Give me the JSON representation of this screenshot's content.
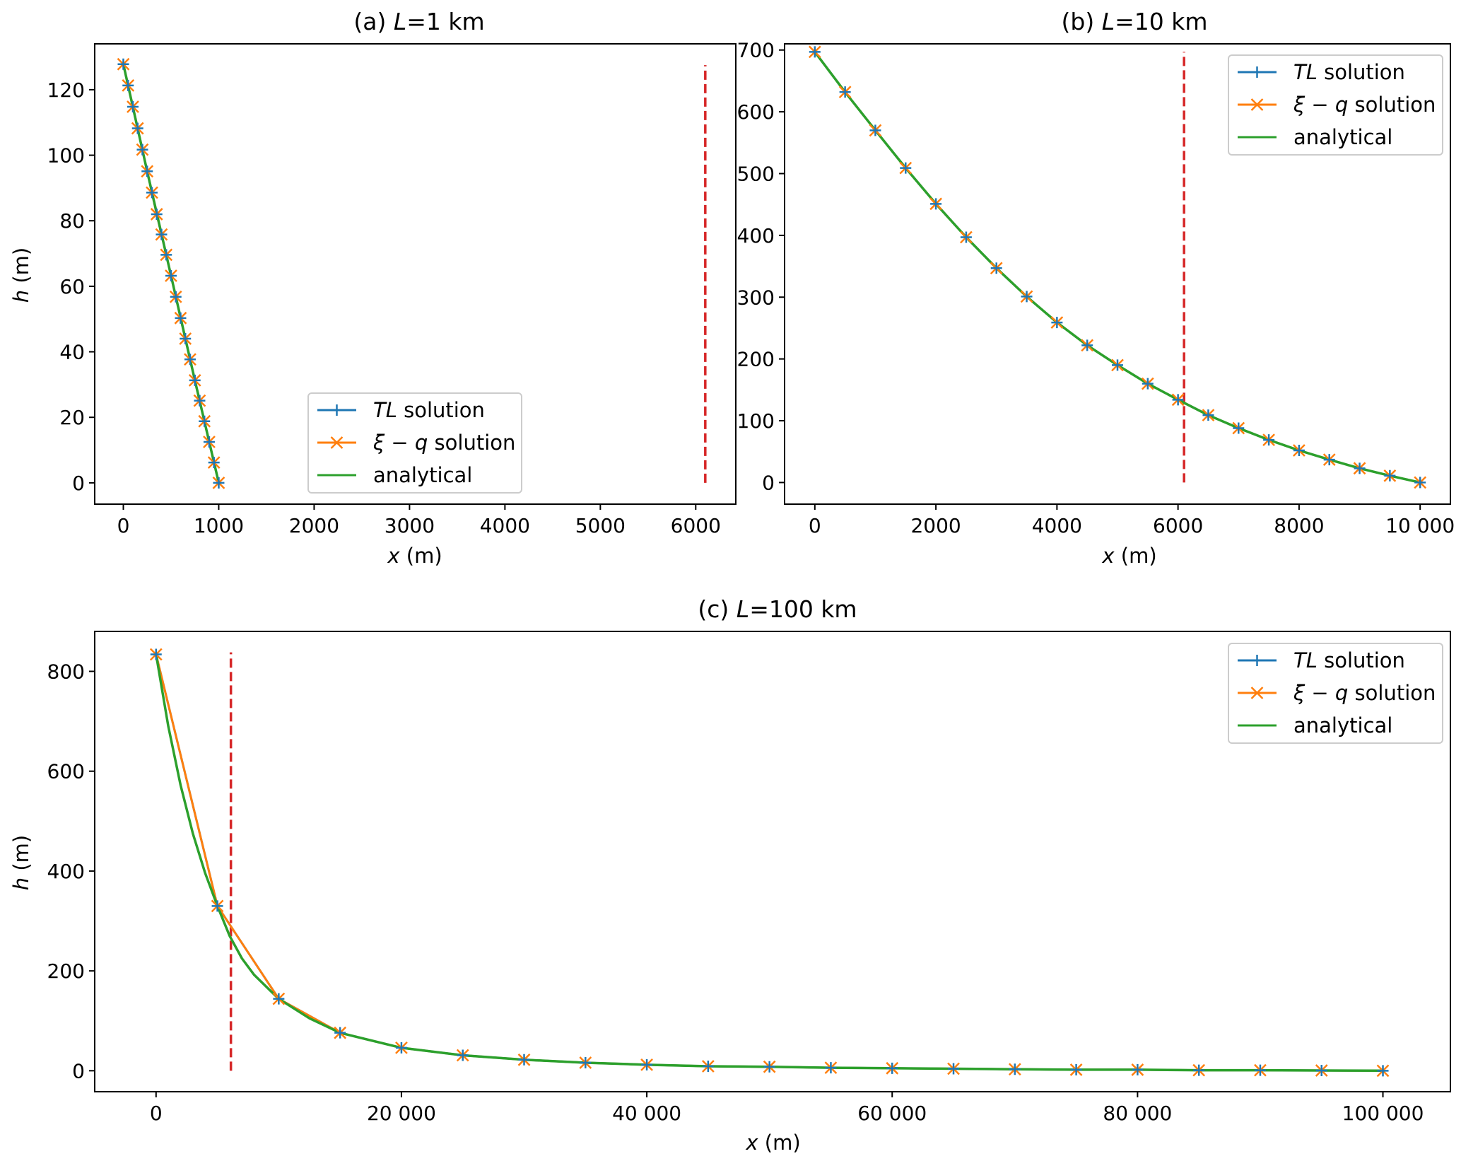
{
  "chart_data": [
    {
      "type": "line",
      "title": "(a) L=1 km",
      "title_prefix": "(a) ",
      "title_var": "L",
      "title_suffix": "=1 km",
      "xlabel_var": "x",
      "xlabel_unit": " (m)",
      "ylabel_var": "h",
      "ylabel_unit": " (m)",
      "xlim": [
        -300,
        6420
      ],
      "ylim": [
        -6.5,
        134
      ],
      "xticks": [
        0,
        1000,
        2000,
        3000,
        4000,
        5000,
        6000
      ],
      "xtick_labels": [
        "0",
        "1000",
        "2000",
        "3000",
        "4000",
        "5000",
        "6000"
      ],
      "yticks": [
        0,
        20,
        40,
        60,
        80,
        100,
        120
      ],
      "ytick_labels": [
        "0",
        "20",
        "40",
        "60",
        "80",
        "100",
        "120"
      ],
      "legend_position": "lower-center",
      "marker_x": [
        0,
        50,
        100,
        150,
        200,
        250,
        300,
        350,
        400,
        450,
        500,
        550,
        600,
        650,
        700,
        750,
        800,
        850,
        900,
        950,
        1000
      ],
      "marker_y": [
        127.8,
        121.3,
        114.8,
        108.2,
        101.7,
        95.1,
        88.6,
        82.0,
        75.8,
        69.6,
        63.2,
        56.8,
        50.3,
        44.0,
        37.7,
        31.3,
        25.1,
        18.8,
        12.5,
        6.2,
        0
      ],
      "analytical_x": [
        0,
        250,
        500,
        750,
        1000
      ],
      "analytical_y": [
        127.8,
        95.1,
        63.2,
        31.3,
        0
      ],
      "reference_line": {
        "x": 6100,
        "y": [
          0,
          127.5
        ]
      }
    },
    {
      "type": "line",
      "title": "(b) L=10 km",
      "title_prefix": "(b) ",
      "title_var": "L",
      "title_suffix": "=10 km",
      "xlabel_var": "x",
      "xlabel_unit": " (m)",
      "ylabel_var": "",
      "ylabel_unit": "",
      "xlim": [
        -500,
        10500
      ],
      "ylim": [
        -35,
        710
      ],
      "xticks": [
        0,
        2000,
        4000,
        6000,
        8000,
        10000
      ],
      "xtick_labels": [
        "0",
        "2000",
        "4000",
        "6000",
        "8000",
        "10 000"
      ],
      "yticks": [
        0,
        100,
        200,
        300,
        400,
        500,
        600,
        700
      ],
      "ytick_labels": [
        "0",
        "100",
        "200",
        "300",
        "400",
        "500",
        "600",
        "700"
      ],
      "legend_position": "top-right",
      "marker_x": [
        0,
        500,
        1000,
        1500,
        2000,
        2500,
        3000,
        3500,
        4000,
        4500,
        5000,
        5500,
        6000,
        6500,
        7000,
        7500,
        8000,
        8500,
        9000,
        9500,
        10000
      ],
      "marker_y": [
        697,
        632,
        570,
        509,
        451,
        397,
        347,
        301,
        259,
        222,
        190,
        160,
        134,
        109,
        88,
        69,
        52,
        37,
        23,
        11,
        0
      ],
      "analytical_x": [
        0,
        500,
        1000,
        1500,
        2000,
        2500,
        3000,
        3500,
        4000,
        4500,
        5000,
        5500,
        6000,
        6500,
        7000,
        7500,
        8000,
        8500,
        9000,
        9500,
        10000
      ],
      "analytical_y": [
        697,
        632,
        570,
        509,
        451,
        397,
        347,
        301,
        259,
        222,
        190,
        160,
        134,
        109,
        88,
        69,
        52,
        37,
        23,
        11,
        0
      ],
      "reference_line": {
        "x": 6100,
        "y": [
          0,
          697
        ]
      }
    },
    {
      "type": "line",
      "title": "(c) L=100 km",
      "title_prefix": "(c) ",
      "title_var": "L",
      "title_suffix": "=100 km",
      "xlabel_var": "x",
      "xlabel_unit": " (m)",
      "ylabel_var": "h",
      "ylabel_unit": " (m)",
      "xlim": [
        -5000,
        105500
      ],
      "ylim": [
        -42,
        880
      ],
      "xticks": [
        0,
        20000,
        40000,
        60000,
        80000,
        100000
      ],
      "xtick_labels": [
        "0",
        "20 000",
        "40 000",
        "60 000",
        "80 000",
        "100 000"
      ],
      "yticks": [
        0,
        200,
        400,
        600,
        800
      ],
      "ytick_labels": [
        "0",
        "200",
        "400",
        "600",
        "800"
      ],
      "legend_position": "top-right",
      "marker_x": [
        0,
        5000,
        10000,
        15000,
        20000,
        25000,
        30000,
        35000,
        40000,
        45000,
        50000,
        55000,
        60000,
        65000,
        70000,
        75000,
        80000,
        85000,
        90000,
        95000,
        100000
      ],
      "marker_y": [
        834,
        330,
        144,
        76,
        46,
        31,
        22,
        16,
        12,
        9,
        8,
        6,
        5,
        4,
        3,
        2,
        2,
        1,
        1,
        0.5,
        0
      ],
      "analytical_x": [
        0,
        1000,
        2000,
        3000,
        4000,
        5000,
        6000,
        7000,
        8000,
        10000,
        12500,
        15000,
        20000,
        25000,
        30000,
        35000,
        40000,
        45000,
        50000,
        55000,
        60000,
        65000,
        70000,
        75000,
        80000,
        85000,
        90000,
        95000,
        100000
      ],
      "analytical_y": [
        834,
        690,
        572,
        475,
        396,
        330,
        270,
        225,
        192,
        144,
        105,
        76,
        46,
        31,
        22,
        16,
        12,
        9,
        8,
        6,
        5,
        4,
        3,
        2,
        2,
        1,
        1,
        0.5,
        0
      ],
      "reference_line": {
        "x": 6100,
        "y": [
          0,
          838
        ]
      }
    }
  ],
  "legend": {
    "entries": [
      {
        "var": "TL",
        "suffix": " solution",
        "color": "#1f77b4",
        "marker": "plus"
      },
      {
        "var": "ξ − q",
        "suffix": " solution",
        "color": "#ff7f0e",
        "marker": "x"
      },
      {
        "var": "",
        "suffix": "analytical",
        "color": "#2ca02c",
        "marker": "none"
      }
    ]
  },
  "colors": {
    "tl": "#1f77b4",
    "xiq": "#ff7f0e",
    "analytical": "#2ca02c",
    "reference": "#d62728"
  }
}
